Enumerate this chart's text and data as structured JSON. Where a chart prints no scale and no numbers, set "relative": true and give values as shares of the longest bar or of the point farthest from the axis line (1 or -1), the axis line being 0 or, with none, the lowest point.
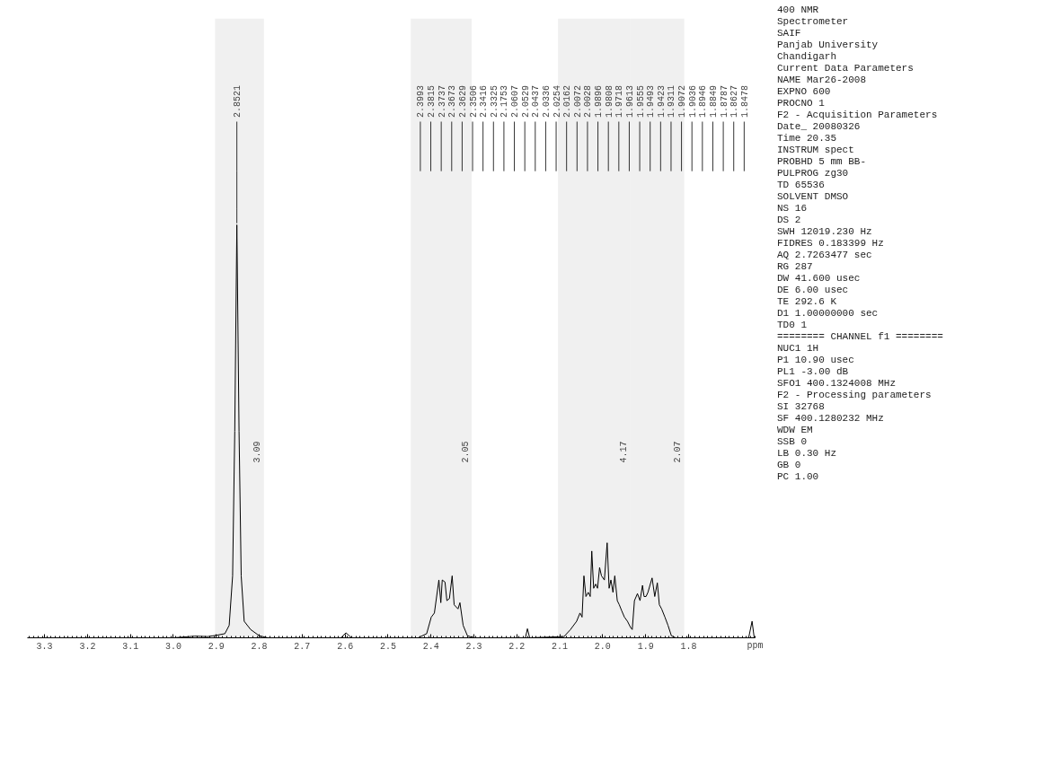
{
  "chart_data": [
    {
      "type": "line",
      "relative": true,
      "xlabel": "ppm",
      "xlim": [
        3.34,
        1.645
      ],
      "xticks": [
        3.3,
        3.2,
        3.1,
        {
          "value": 3.0,
          "label": "3.0"
        },
        2.9,
        2.8,
        2.7,
        2.6,
        2.5,
        2.4,
        2.3,
        2.2,
        2.1,
        {
          "value": 2.0,
          "label": "2.0"
        },
        1.9,
        1.8
      ],
      "bands": [
        {
          "axis": "x",
          "from": 2.903,
          "to": 2.789,
          "label": "3.09"
        },
        {
          "axis": "x",
          "from": 2.447,
          "to": 2.305,
          "label": "2.05"
        },
        {
          "axis": "x",
          "from": 2.104,
          "to": 1.935,
          "label": "4.17"
        },
        {
          "axis": "x",
          "from": 1.935,
          "to": 1.81,
          "label": "2.07"
        }
      ],
      "x": [
        3.34,
        3.0,
        2.95,
        2.92,
        2.9,
        2.88,
        2.87,
        2.862,
        2.857,
        2.8521,
        2.847,
        2.842,
        2.835,
        2.82,
        2.8,
        2.78,
        2.61,
        2.598,
        2.585,
        2.43,
        2.41,
        2.3993,
        2.392,
        2.3815,
        2.377,
        2.3737,
        2.3673,
        2.3629,
        2.357,
        2.3506,
        2.346,
        2.3416,
        2.337,
        2.3325,
        2.325,
        2.315,
        2.3,
        2.18,
        2.1753,
        2.17,
        2.09,
        2.075,
        2.0607,
        2.0529,
        2.048,
        2.0437,
        2.039,
        2.0336,
        2.029,
        2.0254,
        2.021,
        2.0162,
        2.012,
        2.0072,
        2.0028,
        1.996,
        1.9896,
        1.985,
        1.9808,
        1.976,
        1.9718,
        1.966,
        1.9613,
        1.9555,
        1.9493,
        1.9423,
        1.935,
        1.9311,
        1.926,
        1.919,
        1.913,
        1.9072,
        1.9036,
        1.899,
        1.8946,
        1.8849,
        1.8787,
        1.8727,
        1.868,
        1.8627,
        1.855,
        1.8478,
        1.84,
        1.83,
        1.66,
        1.652,
        1.647,
        1.645
      ],
      "series": [
        {
          "color": "#000000",
          "values": [
            0,
            0,
            0.004,
            0.003,
            0.006,
            0.01,
            0.03,
            0.15,
            0.5,
            1.0,
            0.5,
            0.15,
            0.04,
            0.02,
            0.005,
            0,
            0,
            0.012,
            0,
            0,
            0.01,
            0.05,
            0.06,
            0.14,
            0.085,
            0.14,
            0.135,
            0.09,
            0.095,
            0.15,
            0.08,
            0.075,
            0.07,
            0.085,
            0.03,
            0.005,
            0,
            0,
            0.022,
            0,
            0.003,
            0.02,
            0.04,
            0.06,
            0.05,
            0.15,
            0.1,
            0.11,
            0.1,
            0.21,
            0.12,
            0.13,
            0.12,
            0.17,
            0.15,
            0.14,
            0.23,
            0.12,
            0.14,
            0.11,
            0.15,
            0.09,
            0.08,
            0.065,
            0.05,
            0.04,
            0.025,
            0.02,
            0.09,
            0.107,
            0.09,
            0.127,
            0.1,
            0.1,
            0.11,
            0.145,
            0.1,
            0.133,
            0.08,
            0.07,
            0.05,
            0.03,
            0.005,
            0,
            0,
            0.04,
            0,
            0
          ]
        }
      ],
      "annotations": [
        {
          "text": "2.8521",
          "x": 2.8521,
          "y": 1.0
        },
        "2.3993",
        "2.3815",
        "2.3737",
        "2.3673",
        "2.3629",
        "2.3506",
        "2.3416",
        "2.3325",
        "2.1753",
        "2.0607",
        "2.0529",
        "2.0437",
        "2.0336",
        "2.0254",
        "2.0162",
        "2.0072",
        "2.0028",
        "1.9896",
        "1.9808",
        "1.9718",
        "1.9613",
        "1.9555",
        "1.9493",
        "1.9423",
        "1.9311",
        "1.9072",
        "1.9036",
        "1.8946",
        "1.8849",
        "1.8787",
        "1.8627",
        "1.8478"
      ]
    },
    {
      "type": "other",
      "annotations": [
        "400 NMR",
        "Spectrometer",
        "SAIF",
        "Panjab University",
        "Chandigarh",
        "Current Data Parameters",
        "NAME Mar26-2008",
        "EXPNO 600",
        "PROCNO 1",
        "F2 - Acquisition Parameters",
        "Date_ 20080326",
        "Time 20.35",
        "INSTRUM spect",
        "PROBHD 5 mm BB-",
        "PULPROG zg30",
        "TD 65536",
        "SOLVENT DMSO",
        "NS 16",
        "DS 2",
        "SWH 12019.230 Hz",
        "FIDRES 0.183399 Hz",
        "AQ 2.7263477 sec",
        "RG 287",
        "DW 41.600 usec",
        "DE 6.00 usec",
        "TE 292.6 K",
        "D1 1.00000000 sec",
        "TD0 1",
        "======== CHANNEL f1 ========",
        "NUC1 1H",
        "P1 10.90 usec",
        "PL1 -3.00 dB",
        "SFO1 400.1324008 MHz",
        "F2 - Processing parameters",
        "SI 32768",
        "SF 400.1280232 MHz",
        "WDW EM",
        "SSB 0",
        "LB 0.30 Hz",
        "GB 0",
        "PC 1.00"
      ]
    }
  ]
}
